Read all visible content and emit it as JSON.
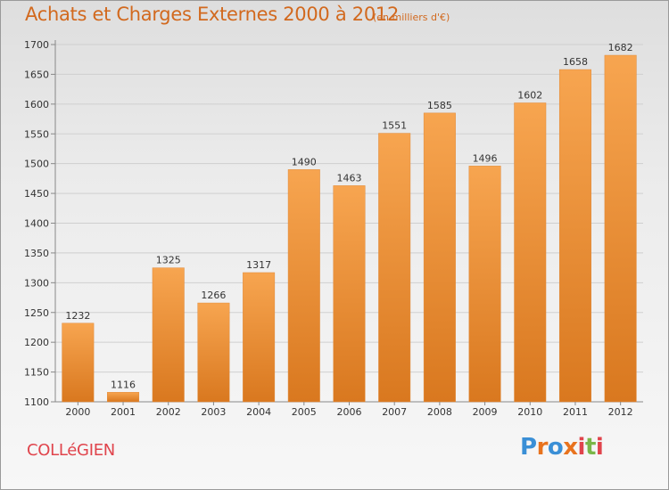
{
  "header": {
    "title": "Achats et Charges Externes 2000 à 2012",
    "subtitle": "(en milliers d'€)"
  },
  "footer": {
    "commune": "COLLéGIEN",
    "logo_text": "Proxiti",
    "logo_colors": [
      "#3a8fd6",
      "#e8731e",
      "#3a8fd6",
      "#e8731e",
      "#e0444c",
      "#7ab648",
      "#e0444c"
    ]
  },
  "colors": {
    "bar_light": "#f7a550",
    "bar_dark": "#d9781f",
    "grid": "#cfcfcf",
    "axis_text": "#333333"
  },
  "chart_data": {
    "type": "bar",
    "categories": [
      "2000",
      "2001",
      "2002",
      "2003",
      "2004",
      "2005",
      "2006",
      "2007",
      "2008",
      "2009",
      "2010",
      "2011",
      "2012"
    ],
    "values": [
      1232,
      1116,
      1325,
      1266,
      1317,
      1490,
      1463,
      1551,
      1585,
      1496,
      1602,
      1658,
      1682
    ],
    "title": "Achats et Charges Externes 2000 à 2012",
    "unit": "(en milliers d'€)",
    "xlabel": "",
    "ylabel": "",
    "ylim": [
      1100,
      1700
    ],
    "yticks": [
      1100,
      1150,
      1200,
      1250,
      1300,
      1350,
      1400,
      1450,
      1500,
      1550,
      1600,
      1650,
      1700
    ],
    "grid": true,
    "data_labels": true
  }
}
